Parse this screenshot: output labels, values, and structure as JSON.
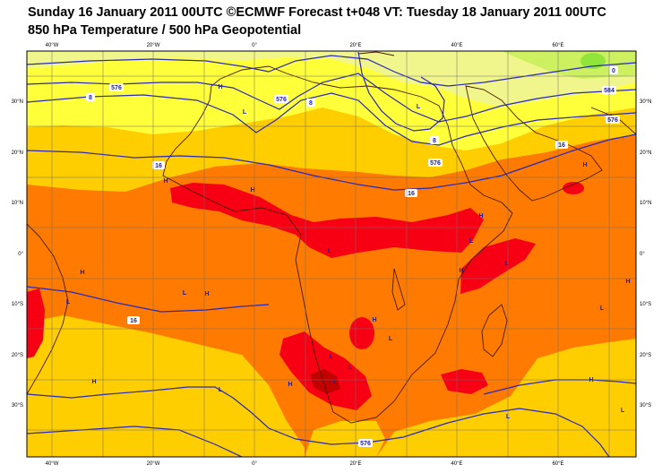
{
  "header": {
    "title_line1": "Sunday 16 January 2011 00UTC ©ECMWF Forecast t+048 VT: Tuesday 18 January 2011 00UTC",
    "title_line2": "850 hPa Temperature / 500 hPa Geopotential"
  },
  "axes": {
    "lon_labels": [
      "40°W",
      "20°W",
      "0°",
      "20°E",
      "40°E",
      "60°E"
    ],
    "lat_labels": [
      "30°N",
      "20°N",
      "10°N",
      "0°",
      "10°S",
      "20°S",
      "30°S"
    ]
  },
  "contour_labels": [
    "576",
    "8",
    "16",
    "576",
    "8",
    "16",
    "576",
    "584",
    "576",
    "16",
    "16",
    "0",
    "8",
    "576"
  ],
  "pressure_markers": [
    "H",
    "L",
    "L",
    "H",
    "H",
    "H",
    "L",
    "L",
    "H",
    "H",
    "L",
    "H",
    "L",
    "H",
    "L",
    "L",
    "H",
    "L",
    "H",
    "L",
    "L",
    "L",
    "H",
    "L",
    "H",
    "L",
    "L",
    "H"
  ],
  "colors": {
    "very_cold": "#90e43a",
    "cold": "#ccf060",
    "cool": "#f0f68c",
    "mild": "#ffff3a",
    "warm": "#ffce00",
    "hot": "#fe7a00",
    "very_hot": "#f80014",
    "extreme": "#c20000",
    "geopotential": "#2828b8",
    "coast": "#4a1a00"
  }
}
